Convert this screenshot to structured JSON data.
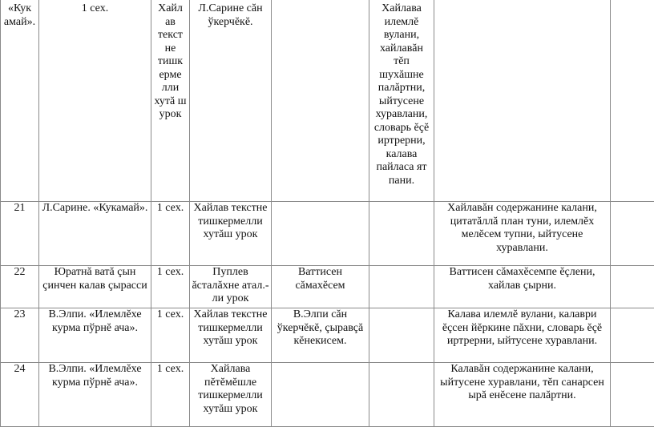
{
  "top_row": {
    "title_fragment": "«Кук амай».",
    "hours": "1 сех.",
    "lesson_type": "Хайл ав текст не тишк ерме лли хутă ш урок",
    "reading": "Л.Сарине сăн ўкерчĕкĕ.",
    "vocab": "",
    "activities": "Хайлава илемлĕ вулани, хайлавăн тĕп шухăшне палăртни, ыйтусене хуравлани, словарь ĕçĕ иртрерни, калава пайласа ят пани.",
    "extra": ""
  },
  "rows": [
    {
      "num": "21",
      "topic": "Л.Сарине. «Кукамай».",
      "hours": "1 сех.",
      "lesson_type": "Хайлав текстне тишкермелли хутăш урок",
      "visual": "",
      "vocab": "",
      "activities": "Хайлавăн содержанине калани, цитатăллă план туни, илемлĕх мелĕсем тупни, ыйтусене хуравлани.",
      "extra": ""
    },
    {
      "num": "22",
      "topic": "Юратнă ватă çын çинчен калав çырасси",
      "hours": "1 сех.",
      "lesson_type": "Пуплев ăсталăхне атал.-ли урок",
      "visual": "Ваттисен сăмахĕсем",
      "vocab": "",
      "activities": "Ваттисен сăмахĕсемпе ĕçлени, хайлав çырни.",
      "extra": ""
    },
    {
      "num": "23",
      "topic": "В.Элпи. «Илемлĕхе курма пўрнĕ ача».",
      "hours": "1 сех.",
      "lesson_type": "Хайлав текстне тишкермелли хутăш урок",
      "visual": "В.Элпи сăн ўкерчĕкĕ, çыравçă кĕнекисем.",
      "vocab": "",
      "activities": "Калава илемлĕ вулани, калаври ĕçсен йĕркине пăхни, словарь ĕçĕ иртрерни, ыйтусене хуравлани.",
      "extra": ""
    },
    {
      "num": "24",
      "topic": "В.Элпи. «Илемлĕхе курма пўрнĕ ача».",
      "hours": "1 сех.",
      "lesson_type": "Хайлава пĕтĕмĕшле тишкермелли хутăш урок",
      "visual": "",
      "vocab": "",
      "activities": "Калавăн содержанине калани, ыйтусене хуравлани, тĕп санарсен ырă енĕсене палăртни.",
      "extra": ""
    }
  ]
}
